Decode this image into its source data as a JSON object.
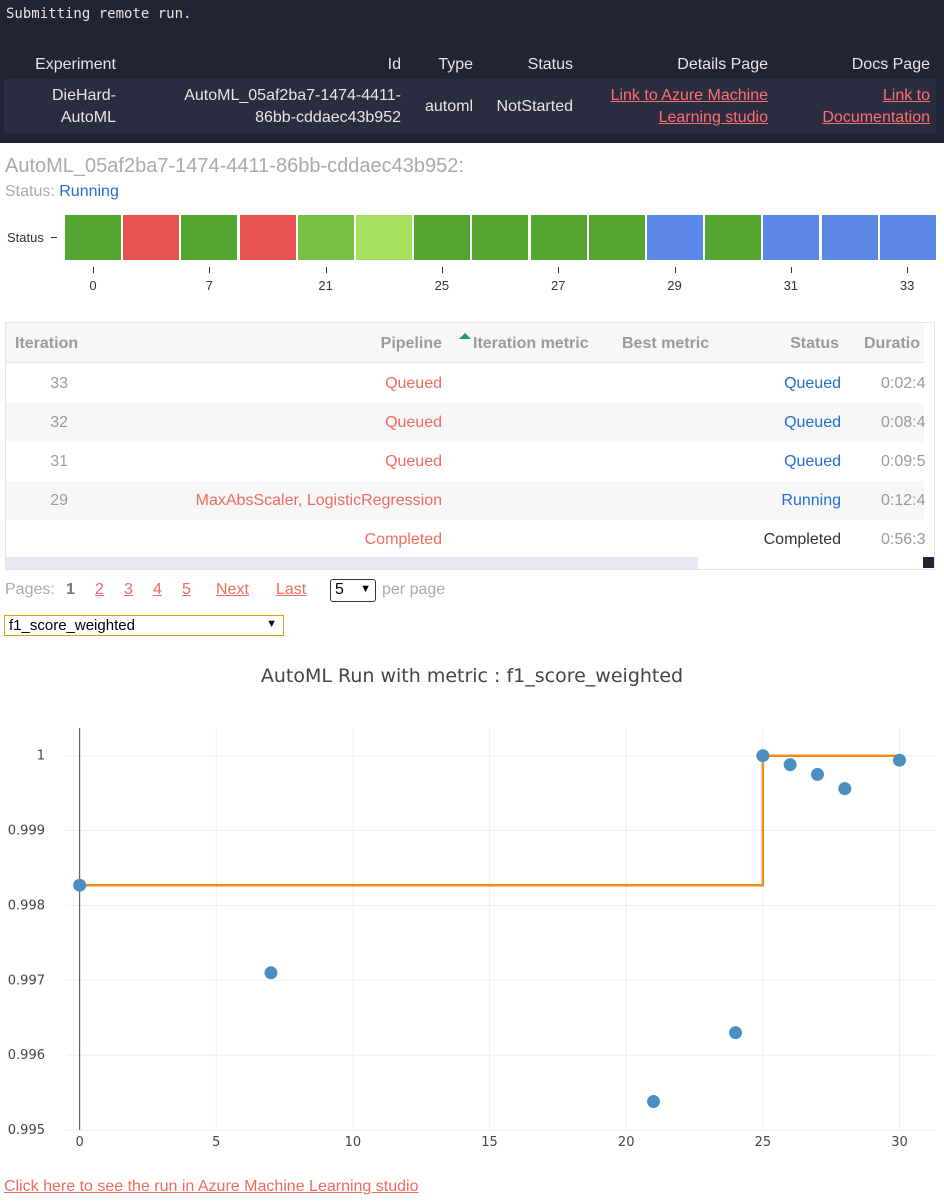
{
  "output": {
    "submitting_text": "Submitting remote run."
  },
  "run_table": {
    "headers": [
      "Experiment",
      "Id",
      "Type",
      "Status",
      "Details Page",
      "Docs Page"
    ],
    "row": {
      "experiment": [
        "DieHard-",
        "AutoML"
      ],
      "id": [
        "AutoML_05af2ba7-1474-4411-",
        "86bb-cddaec43b952"
      ],
      "type": "automl",
      "status": "NotStarted",
      "details_link": [
        "Link to Azure Machine",
        "Learning studio"
      ],
      "docs_link": [
        "Link to",
        "Documentation"
      ]
    }
  },
  "widget": {
    "run_title": "AutoML_05af2ba7-1474-4411-86bb-cddaec43b952:",
    "status_prefix": "Status: ",
    "status_value": "Running",
    "status_axis_label": "Status",
    "status_bar_colors": [
      "#55a630",
      "#e85454",
      "#55a630",
      "#e85454",
      "#7ac143",
      "#a7e05f",
      "#55a630",
      "#55a630",
      "#55a630",
      "#55a630",
      "#5b87e6",
      "#55a630",
      "#5b87e6",
      "#5b87e6",
      "#5b87e6"
    ],
    "iteration_ticks": [
      "0",
      "7",
      "21",
      "25",
      "27",
      "29",
      "31",
      "33"
    ],
    "grid": {
      "headers": {
        "iteration": "Iteration",
        "pipeline": "Pipeline",
        "iteration_metric": "Iteration metric",
        "best_metric": "Best metric",
        "status": "Status",
        "duration": "Duratio"
      },
      "rows": [
        {
          "iteration": "33",
          "pipeline": "Queued",
          "status": "Queued",
          "duration": "0:02:4"
        },
        {
          "iteration": "32",
          "pipeline": "Queued",
          "status": "Queued",
          "duration": "0:08:4"
        },
        {
          "iteration": "31",
          "pipeline": "Queued",
          "status": "Queued",
          "duration": "0:09:5"
        },
        {
          "iteration": "29",
          "pipeline": "MaxAbsScaler, LogisticRegression",
          "status": "Running",
          "duration": "0:12:4"
        },
        {
          "iteration": "",
          "pipeline": "Completed",
          "status": "Completed",
          "duration": "0:56:3"
        }
      ]
    },
    "pager": {
      "label": "Pages:",
      "current": "1",
      "pages": [
        "2",
        "3",
        "4",
        "5"
      ],
      "next": "Next",
      "last": "Last",
      "page_size": "5",
      "per_page": "per page"
    },
    "metric_select": "f1_score_weighted",
    "studio_link": "Click here to see the run in Azure Machine Learning studio"
  },
  "colors": {
    "accent_link": "#ef6b5e",
    "status_blue": "#1e6fd0",
    "point": "#4a8fc0",
    "best_line": "#f28c1e"
  },
  "chart_data": {
    "type": "scatter",
    "title": "AutoML Run with metric : f1_score_weighted",
    "xlabel": "",
    "ylabel": "",
    "xlim": [
      -0.5,
      31.3
    ],
    "ylim": [
      0.995,
      1.00037
    ],
    "xticks": [
      0,
      5,
      10,
      15,
      20,
      25,
      30
    ],
    "yticks": [
      {
        "value": 0.995,
        "label": "0.995"
      },
      {
        "value": 0.996,
        "label": "0.996"
      },
      {
        "value": 0.997,
        "label": "0.997"
      },
      {
        "value": 0.998,
        "label": "0.998"
      },
      {
        "value": 0.999,
        "label": "0.999"
      },
      {
        "value": 1.0,
        "label": "1"
      }
    ],
    "grid": true,
    "series": [
      {
        "mode": "markers",
        "x": [
          0,
          7,
          21,
          24,
          25,
          26,
          27,
          28,
          30
        ],
        "y": [
          0.99827,
          0.9971,
          0.99538,
          0.9963,
          1.0,
          0.99988,
          0.99975,
          0.99956,
          0.99994
        ]
      },
      {
        "mode": "lines-step",
        "x": [
          0,
          25,
          25,
          30
        ],
        "y": [
          0.99827,
          0.99827,
          1.0,
          1.0
        ]
      }
    ]
  }
}
